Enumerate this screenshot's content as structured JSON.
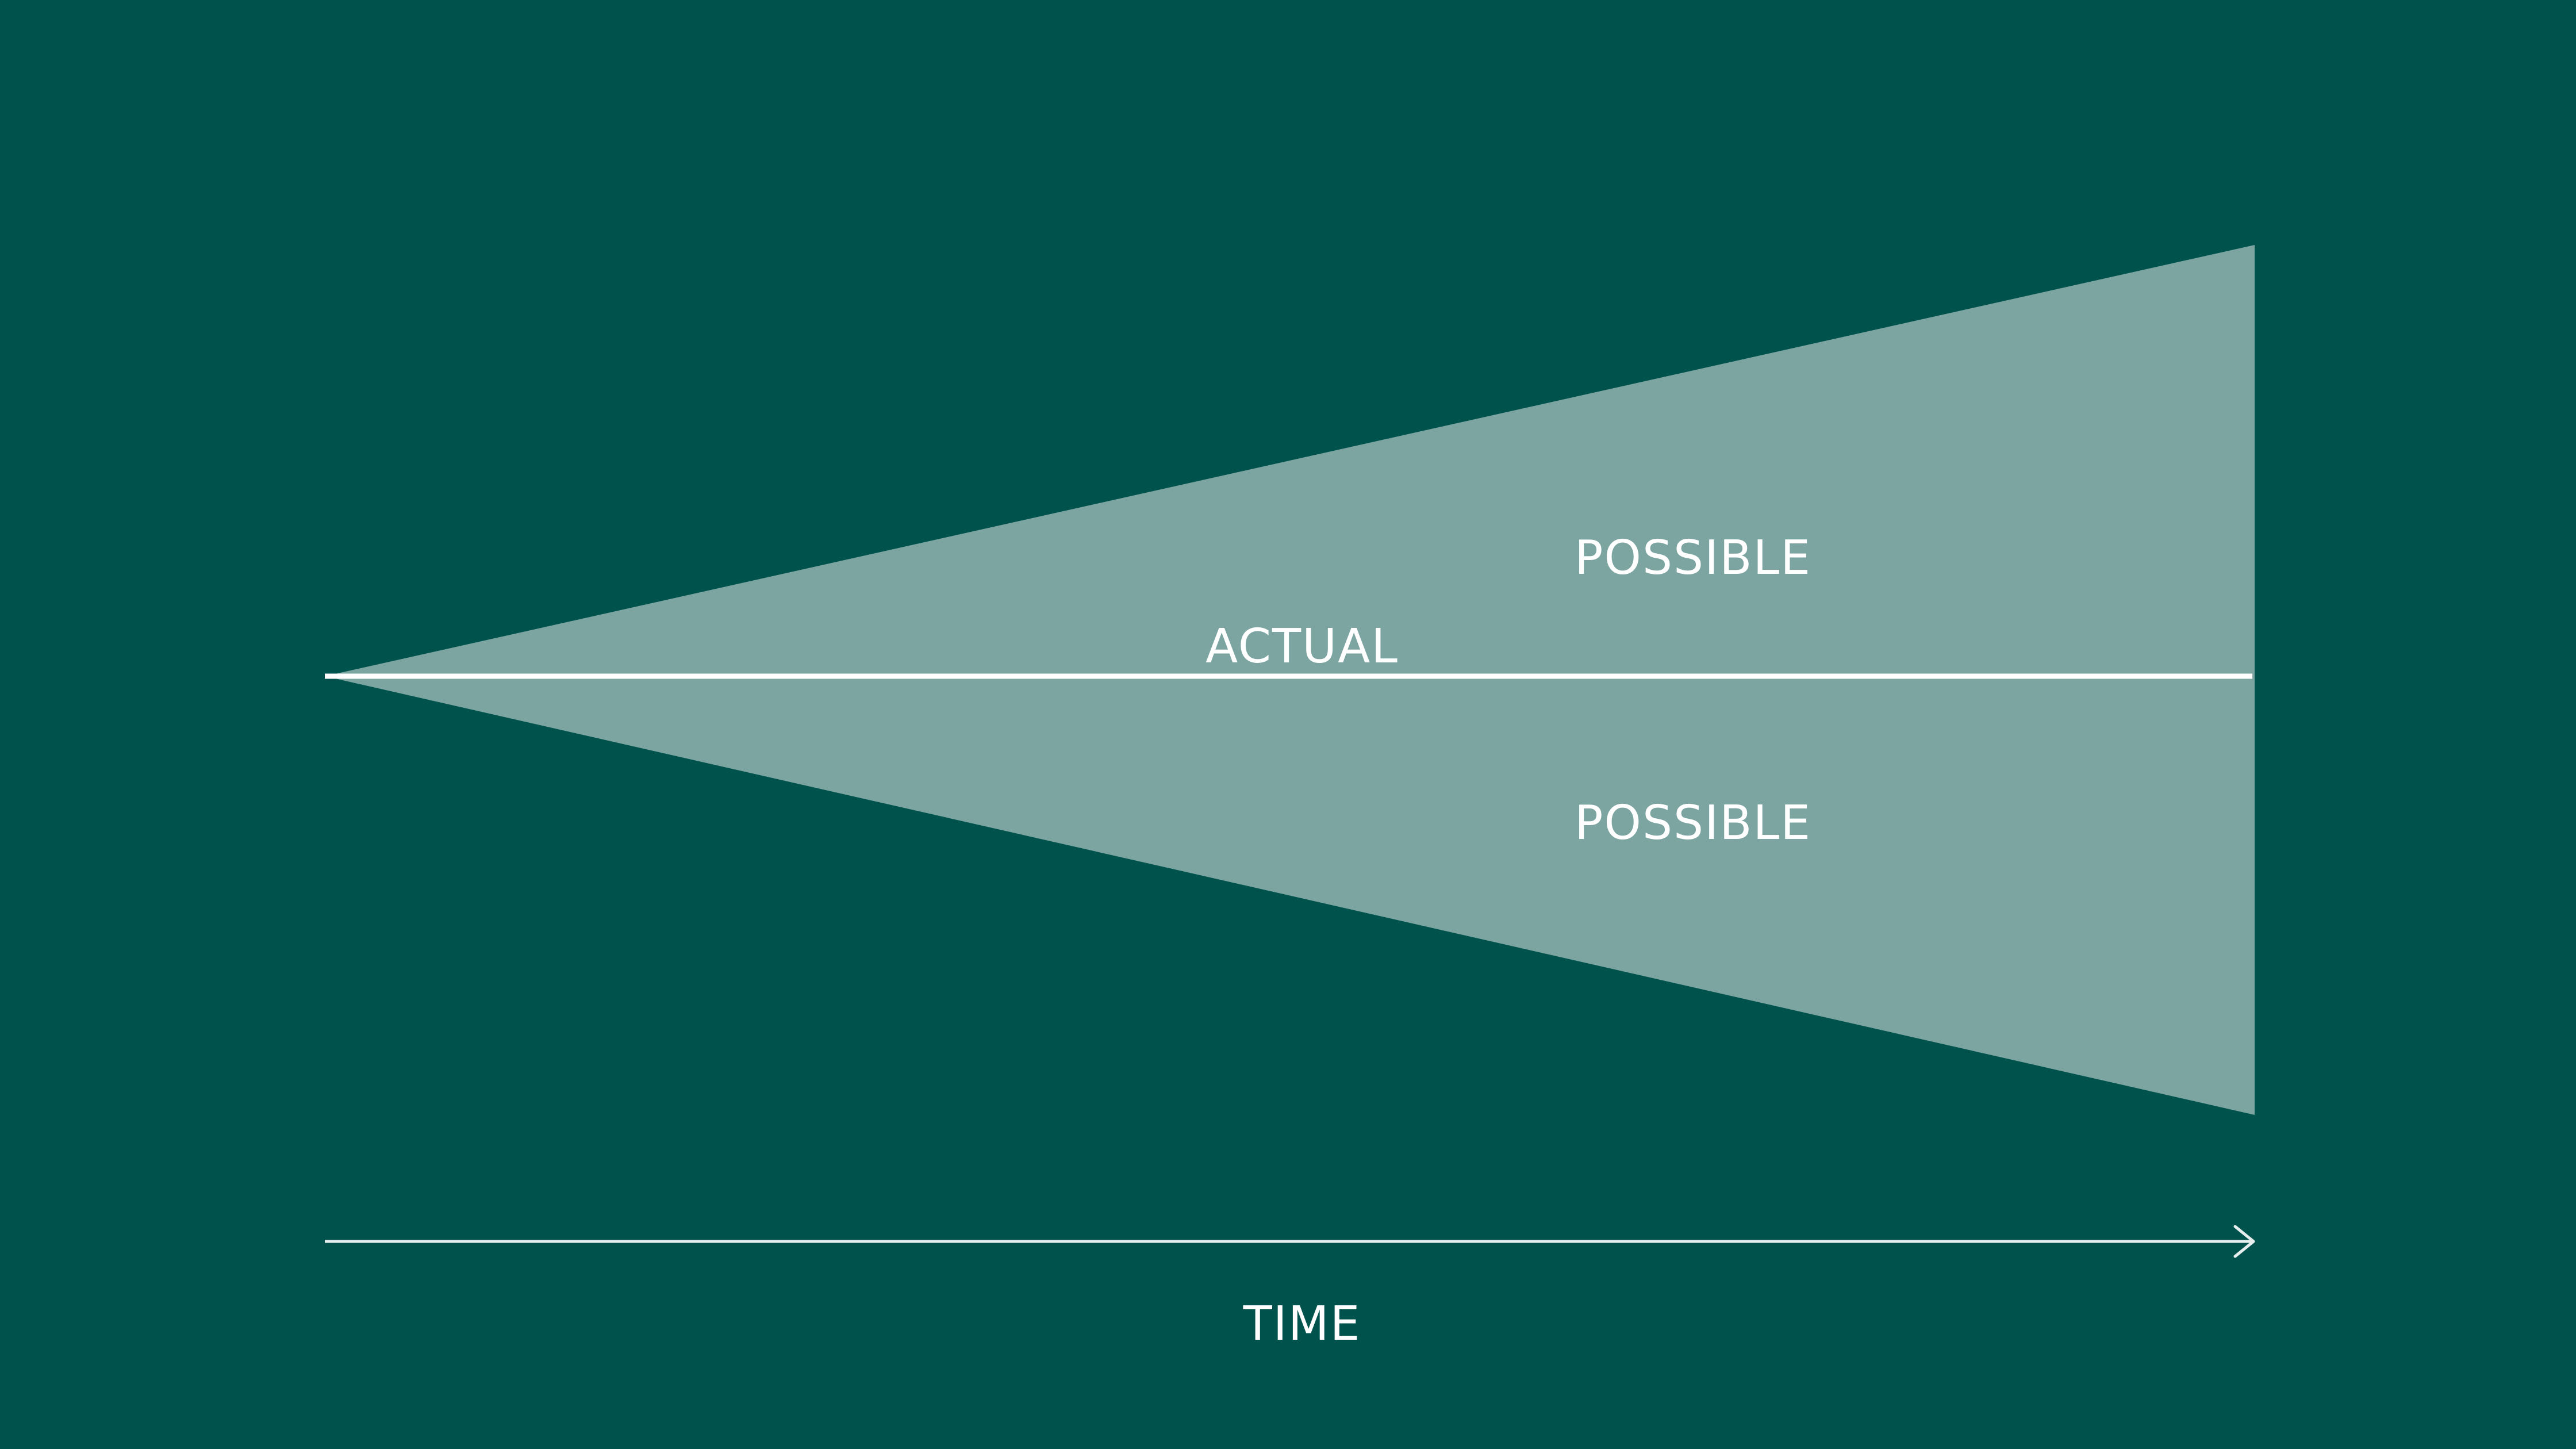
{
  "diagram": {
    "labels": {
      "possible_upper": "POSSIBLE",
      "actual": "ACTUAL",
      "possible_lower": "POSSIBLE",
      "time_axis": "TIME"
    },
    "colors": {
      "background": "#00524c",
      "cone_fill": "#7ca4a1",
      "actual_line": "#ffffff",
      "axis_line": "#e6efee",
      "text": "#ffffff"
    }
  }
}
